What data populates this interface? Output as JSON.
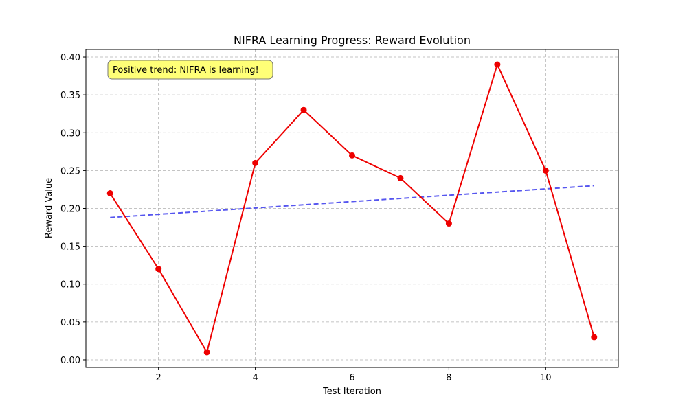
{
  "chart_data": {
    "type": "line",
    "title": "NIFRA Learning Progress: Reward Evolution",
    "xlabel": "Test Iteration",
    "ylabel": "Reward Value",
    "xlim": [
      0.5,
      11.5
    ],
    "ylim": [
      -0.01,
      0.41
    ],
    "x_ticks": [
      2,
      4,
      6,
      8,
      10
    ],
    "y_ticks": [
      0.0,
      0.05,
      0.1,
      0.15,
      0.2,
      0.25,
      0.3,
      0.35,
      0.4
    ],
    "y_tick_labels": [
      "0.00",
      "0.05",
      "0.10",
      "0.15",
      "0.20",
      "0.25",
      "0.30",
      "0.35",
      "0.40"
    ],
    "grid": true,
    "series": [
      {
        "x": [
          1,
          2,
          3,
          4,
          5,
          6,
          7,
          8,
          9,
          10,
          11
        ],
        "values": [
          0.22,
          0.12,
          0.01,
          0.26,
          0.33,
          0.27,
          0.24,
          0.18,
          0.39,
          0.25,
          0.03
        ],
        "color": "#ee0000",
        "style": "solid",
        "marker": "circle"
      }
    ],
    "trend": {
      "x": [
        1,
        11
      ],
      "values": [
        0.188,
        0.23
      ],
      "color": "#4444ee",
      "style": "dashed"
    },
    "annotation": {
      "text": "Positive trend: NIFRA is learning!",
      "position": "top-left",
      "background": "#ffff77"
    }
  }
}
